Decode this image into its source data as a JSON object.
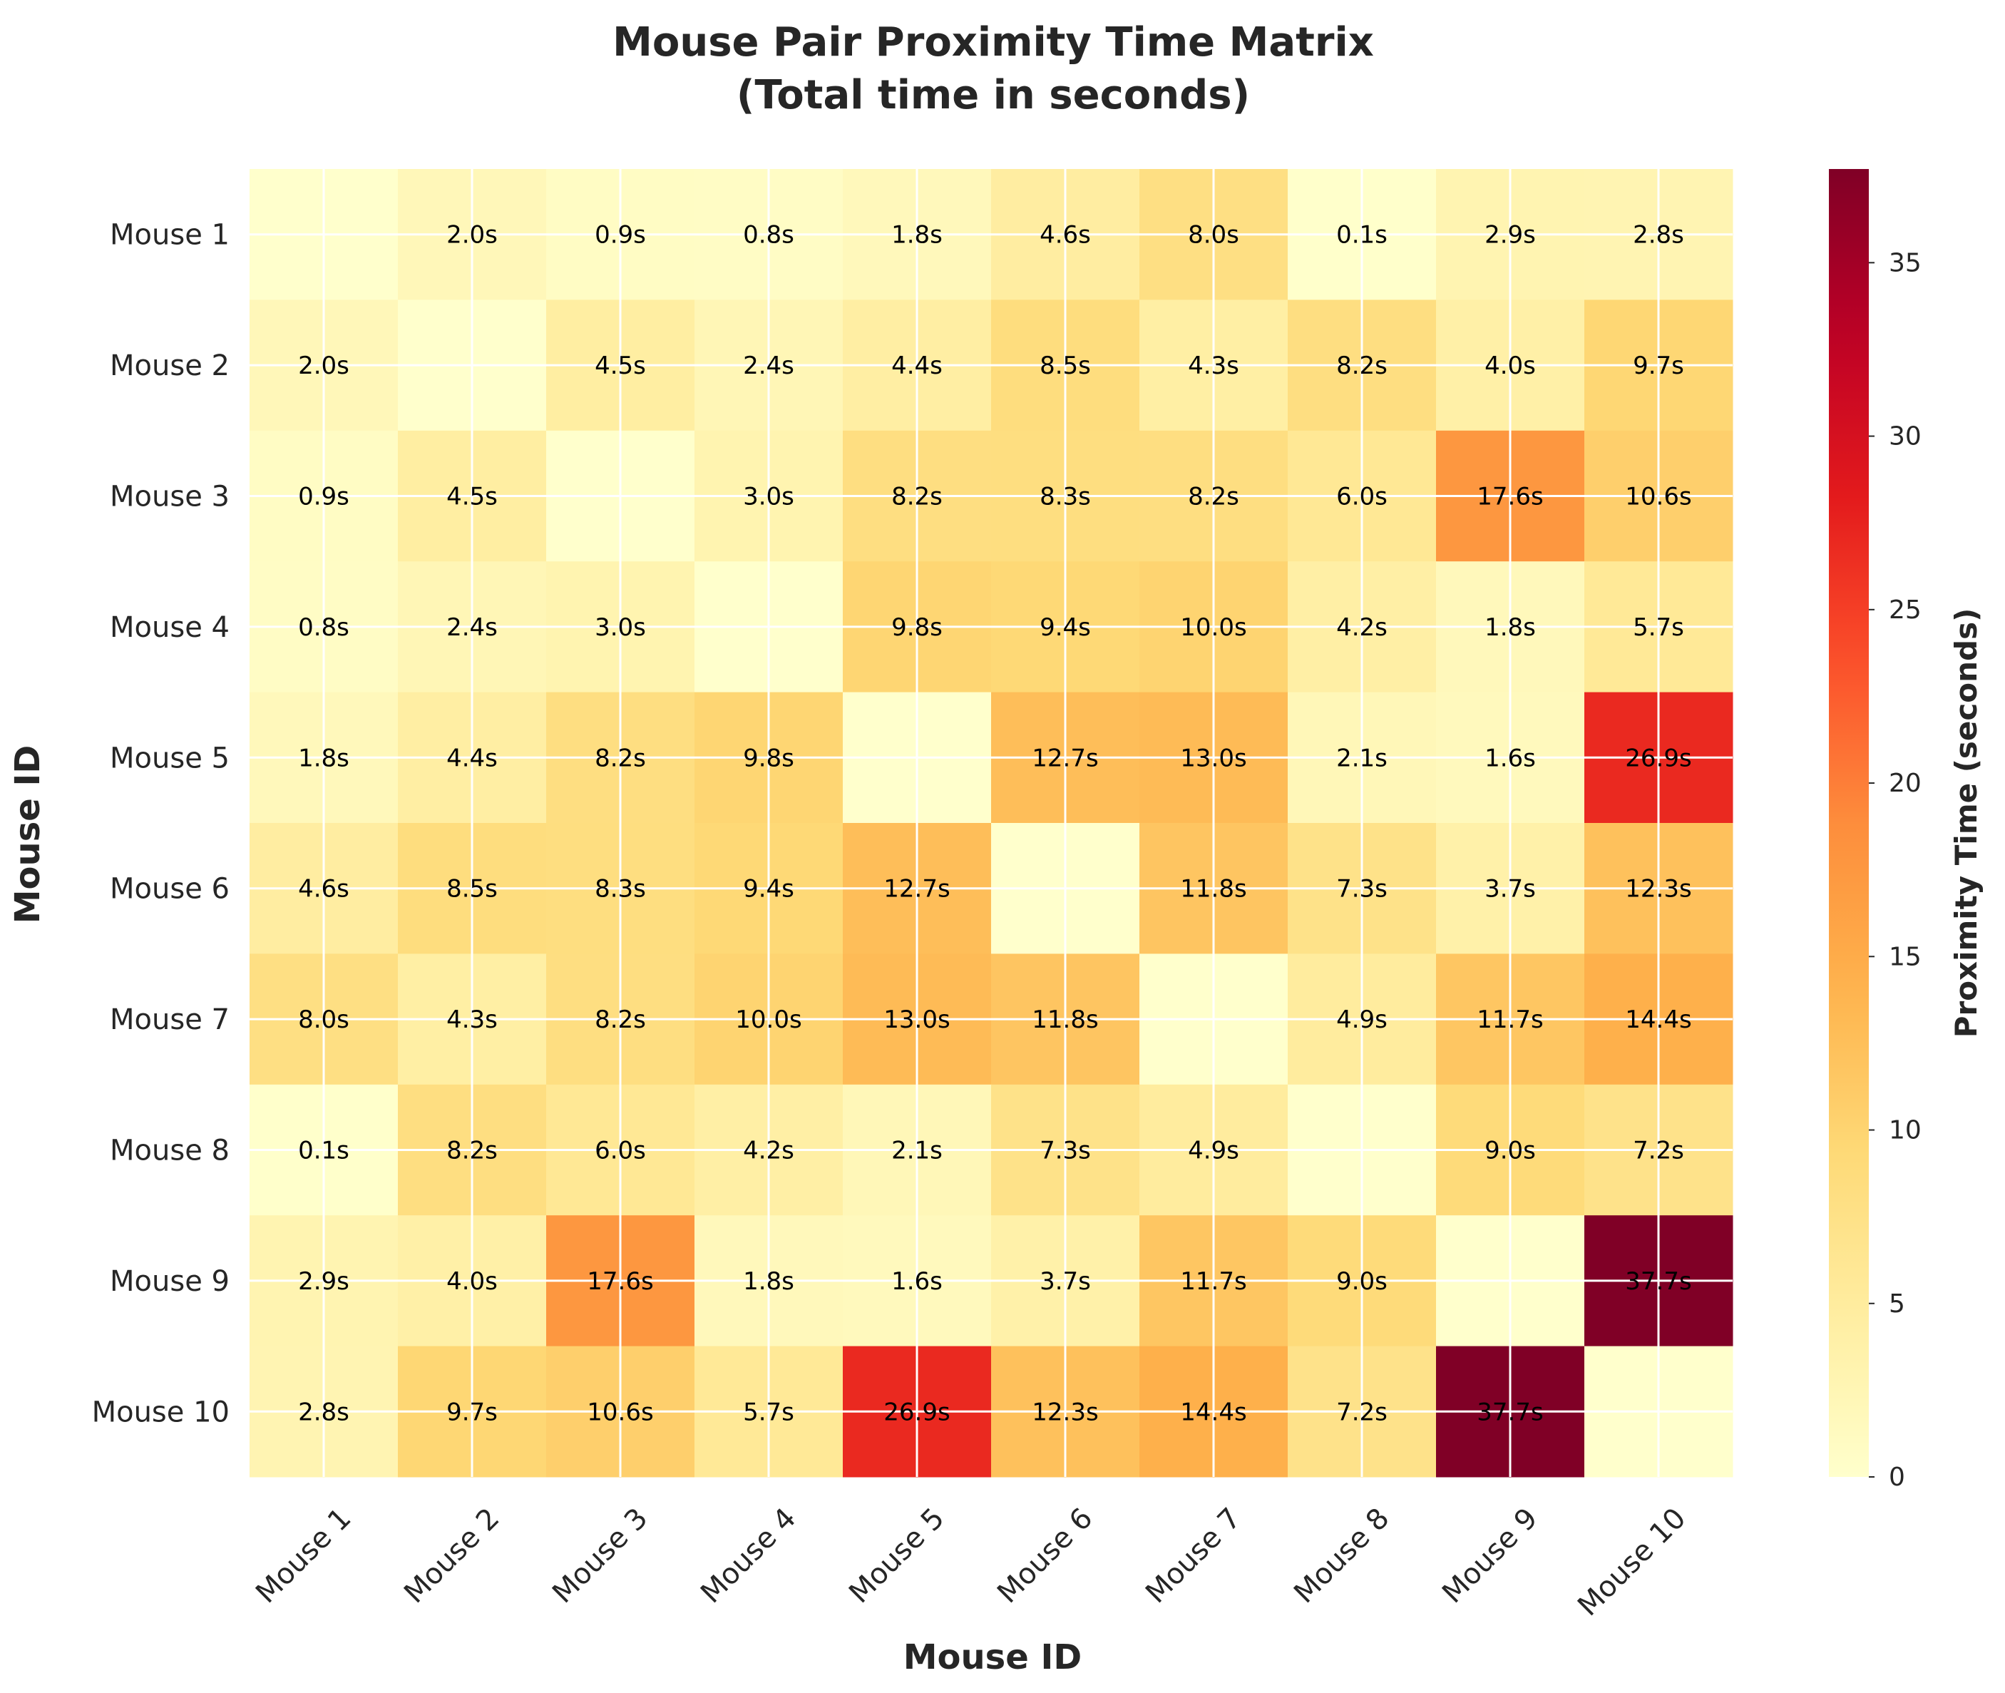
{
  "chart_data": {
    "type": "heatmap",
    "title_lines": [
      "Mouse Pair Proximity Time Matrix",
      "(Total time in seconds)"
    ],
    "xlabel": "Mouse ID",
    "ylabel": "Mouse ID",
    "rows": [
      "Mouse 1",
      "Mouse 2",
      "Mouse 3",
      "Mouse 4",
      "Mouse 5",
      "Mouse 6",
      "Mouse 7",
      "Mouse 8",
      "Mouse 9",
      "Mouse 10"
    ],
    "cols": [
      "Mouse 1",
      "Mouse 2",
      "Mouse 3",
      "Mouse 4",
      "Mouse 5",
      "Mouse 6",
      "Mouse 7",
      "Mouse 8",
      "Mouse 9",
      "Mouse 10"
    ],
    "values": [
      [
        0.0,
        2.0,
        0.9,
        0.8,
        1.8,
        4.6,
        8.0,
        0.1,
        2.9,
        2.8
      ],
      [
        2.0,
        0.0,
        4.5,
        2.4,
        4.4,
        8.5,
        4.3,
        8.2,
        4.0,
        9.7
      ],
      [
        0.9,
        4.5,
        0.0,
        3.0,
        8.2,
        8.3,
        8.2,
        6.0,
        17.6,
        10.6
      ],
      [
        0.8,
        2.4,
        3.0,
        0.0,
        9.8,
        9.4,
        10.0,
        4.2,
        1.8,
        5.7
      ],
      [
        1.8,
        4.4,
        8.2,
        9.8,
        0.0,
        12.7,
        13.0,
        2.1,
        1.6,
        26.9
      ],
      [
        4.6,
        8.5,
        8.3,
        9.4,
        12.7,
        0.0,
        11.8,
        7.3,
        3.7,
        12.3
      ],
      [
        8.0,
        4.3,
        8.2,
        10.0,
        13.0,
        11.8,
        0.0,
        4.9,
        11.7,
        14.4
      ],
      [
        0.1,
        8.2,
        6.0,
        4.2,
        2.1,
        7.3,
        4.9,
        0.0,
        9.0,
        7.2
      ],
      [
        2.9,
        4.0,
        17.6,
        1.8,
        1.6,
        3.7,
        11.7,
        9.0,
        0.0,
        37.7
      ],
      [
        2.8,
        9.7,
        10.6,
        5.7,
        26.9,
        12.3,
        14.4,
        7.2,
        37.7,
        0.0
      ]
    ],
    "value_suffix": "s",
    "show_diagonal_labels": false,
    "colormap": "YlOrRd",
    "vmin": 0,
    "vmax": 37.7,
    "grid": true,
    "colorbar": {
      "label": "Proximity Time (seconds)",
      "ticks": [
        0,
        5,
        10,
        15,
        20,
        25,
        30,
        35
      ],
      "placement": "right"
    }
  }
}
